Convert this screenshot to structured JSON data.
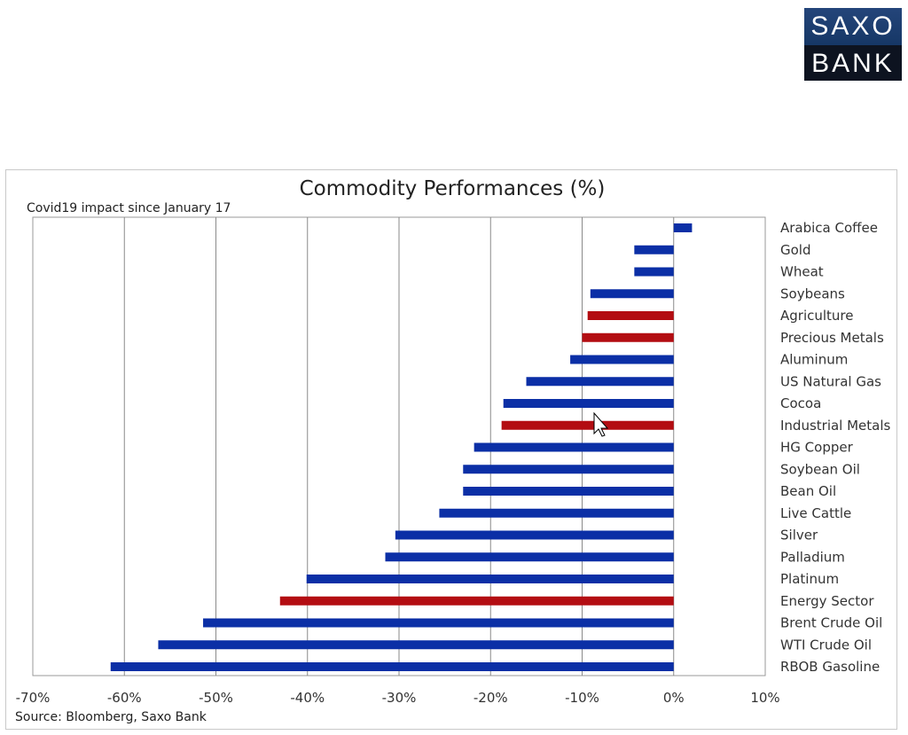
{
  "logo": {
    "line1": "SAXO",
    "line2": "BANK"
  },
  "colors": {
    "commodity": "#0b2fa6",
    "sector": "#b30d12",
    "grid": "#8a8a8a"
  },
  "chart_data": {
    "type": "bar",
    "orientation": "horizontal",
    "title": "Commodity Performances (%)",
    "subtitle": "Covid19 impact since January 17",
    "source": "Source: Bloomberg, Saxo Bank",
    "xlim": [
      -70,
      10
    ],
    "xticks": [
      -70,
      -60,
      -50,
      -40,
      -30,
      -20,
      -10,
      0,
      10
    ],
    "xtick_labels": [
      "-70%",
      "-60%",
      "-50%",
      "-40%",
      "-30%",
      "-20%",
      "-10%",
      "0%",
      "10%"
    ],
    "grid": "vertical",
    "categories": [
      "Arabica Coffee",
      "Gold",
      "Wheat",
      "Soybeans",
      "Agriculture",
      "Precious Metals",
      "Aluminum",
      "US Natural Gas",
      "Cocoa",
      "Industrial Metals",
      "HG Copper",
      "Soybean Oil",
      "Bean Oil",
      "Live Cattle",
      "Silver",
      "Palladium",
      "Platinum",
      "Energy Sector",
      "Brent Crude Oil",
      "WTI Crude Oil",
      "RBOB Gasoline"
    ],
    "values": [
      2.0,
      -4.3,
      -4.3,
      -9.1,
      -9.4,
      -10.0,
      -11.3,
      -16.1,
      -18.6,
      -18.8,
      -21.8,
      -23.0,
      -23.0,
      -25.6,
      -30.4,
      -31.5,
      -40.1,
      -43.0,
      -51.4,
      -56.3,
      -61.5
    ],
    "kind": [
      "commodity",
      "commodity",
      "commodity",
      "commodity",
      "sector",
      "sector",
      "commodity",
      "commodity",
      "commodity",
      "sector",
      "commodity",
      "commodity",
      "commodity",
      "commodity",
      "commodity",
      "commodity",
      "commodity",
      "sector",
      "commodity",
      "commodity",
      "commodity"
    ]
  }
}
